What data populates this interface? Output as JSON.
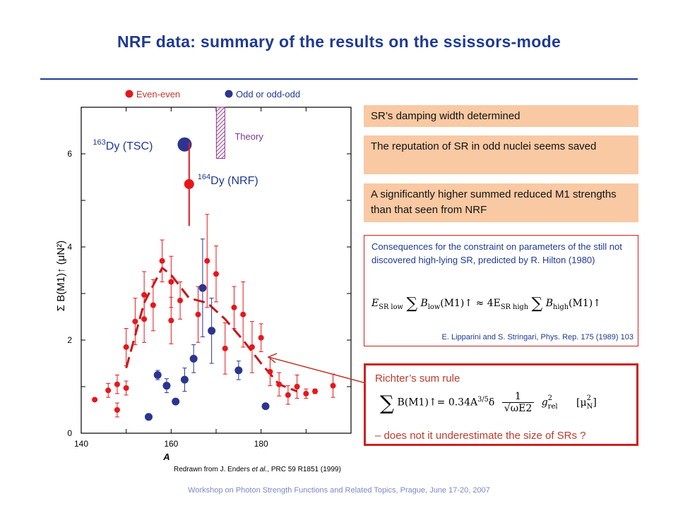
{
  "slide": {
    "title": "NRF data: summary of the results on the ssissors-mode",
    "footer": "Workshop on Photon Strength Functions and Related Topics, Prague, June 17-20, 2007",
    "redrawn_prefix": "Redrawn from J. Enders ",
    "redrawn_italic": "et al.",
    "redrawn_suffix": ", PRC 59 R1851 (1999)",
    "boxes": [
      "SR’s damping width determined",
      "The reputation of SR in odd nuclei seems saved",
      "A significantly higher summed reduced M1 strengths than that seen from NRF"
    ],
    "consequences": {
      "text": "Consequences  for the constraint on parameters  of  the still not discovered high-lying SR, predicted by R. Hilton (1980)",
      "eq_lhs_E": "E",
      "eq_lhs_sub": "SR low",
      "eq_sum1": "∑",
      "eq_B1": "B",
      "eq_B1_sub": "low",
      "eq_mid": "(M1)↑ ≈ 4E",
      "eq_rhs_sub": "SR high",
      "eq_sum2": "∑",
      "eq_B2": "B",
      "eq_B2_sub": "high",
      "eq_end": "(M1)↑",
      "reference": "E. Lipparini and S. Stringari, Phys. Rep. 175 (1989) 103"
    },
    "richter": {
      "title": "Richter’s sum rule",
      "sum": "∑",
      "lhs": "B(M1)↑= 0.34A",
      "exp": "3/5",
      "delta": "δ",
      "frac_num": "1",
      "frac_den": "√ωE2",
      "g": "g",
      "g_sup": "2",
      "g_sub": "rel",
      "unit": "[μ",
      "unit_sub": "N",
      "unit_sup": "2",
      "unit_end": "]",
      "question": "– does not it underestimate the size of SRs ?"
    }
  },
  "chart_data": {
    "type": "scatter",
    "xlabel": "A",
    "ylabel": "Σ B(M1)↑ (μN²)",
    "xlim": [
      140,
      200
    ],
    "ylim": [
      0,
      7
    ],
    "xticks": [
      140,
      160,
      180
    ],
    "yticks": [
      0,
      2,
      4,
      6
    ],
    "legend": [
      {
        "name": "Even-even",
        "color": "#e8161b"
      },
      {
        "name": "Odd or odd-odd",
        "color": "#2b3590"
      }
    ],
    "series": [
      {
        "name": "Even-even",
        "color": "#e8161b",
        "points": [
          {
            "x": 143,
            "y": 0.72,
            "e": 0
          },
          {
            "x": 146,
            "y": 0.92,
            "e": 0.15
          },
          {
            "x": 148,
            "y": 0.5,
            "e": 0.15
          },
          {
            "x": 148,
            "y": 1.05,
            "e": 0.2
          },
          {
            "x": 150,
            "y": 0.97,
            "e": 0.15
          },
          {
            "x": 150,
            "y": 1.85,
            "e": 0.4
          },
          {
            "x": 152,
            "y": 2.4,
            "e": 0.5
          },
          {
            "x": 154,
            "y": 2.45,
            "e": 0.5
          },
          {
            "x": 154,
            "y": 2.97,
            "e": 0.5
          },
          {
            "x": 156,
            "y": 2.75,
            "e": 0.55
          },
          {
            "x": 158,
            "y": 3.7,
            "e": 0.45
          },
          {
            "x": 160,
            "y": 3.25,
            "e": 0.55
          },
          {
            "x": 160,
            "y": 2.42,
            "e": 0.5
          },
          {
            "x": 162,
            "y": 2.85,
            "e": 0.4
          },
          {
            "x": 166,
            "y": 2.55,
            "e": 0.6
          },
          {
            "x": 168,
            "y": 3.7,
            "e": 1.0
          },
          {
            "x": 170,
            "y": 3.42,
            "e": 0.6
          },
          {
            "x": 172,
            "y": 1.82,
            "e": 0.55
          },
          {
            "x": 174,
            "y": 2.7,
            "e": 0.45
          },
          {
            "x": 176,
            "y": 2.55,
            "e": 0.7
          },
          {
            "x": 178,
            "y": 1.85,
            "e": 0.55
          },
          {
            "x": 180,
            "y": 2.05,
            "e": 0.3
          },
          {
            "x": 182,
            "y": 1.32,
            "e": 0.3
          },
          {
            "x": 184,
            "y": 1.05,
            "e": 0.25
          },
          {
            "x": 186,
            "y": 0.82,
            "e": 0.2
          },
          {
            "x": 188,
            "y": 1.0,
            "e": 0.25
          },
          {
            "x": 190,
            "y": 0.85,
            "e": 0.1
          },
          {
            "x": 192,
            "y": 0.9,
            "e": 0.05
          },
          {
            "x": 196,
            "y": 1.02,
            "e": 0.25
          }
        ]
      },
      {
        "name": "Odd or odd-odd",
        "color": "#2b3590",
        "points": [
          {
            "x": 155,
            "y": 0.35,
            "e": 0
          },
          {
            "x": 157,
            "y": 1.25,
            "e": 0.1
          },
          {
            "x": 159,
            "y": 1.02,
            "e": 0.15
          },
          {
            "x": 161,
            "y": 0.68,
            "e": 0
          },
          {
            "x": 163,
            "y": 1.15,
            "e": 0.25
          },
          {
            "x": 165,
            "y": 1.6,
            "e": 0.3
          },
          {
            "x": 167,
            "y": 3.12,
            "e": 1.05
          },
          {
            "x": 169,
            "y": 2.2,
            "e": 0.7
          },
          {
            "x": 175,
            "y": 1.35,
            "e": 0.2
          },
          {
            "x": 181,
            "y": 0.58,
            "e": 0
          }
        ]
      }
    ],
    "tsc": {
      "label_sup": "163",
      "label": "Dy (TSC)",
      "x": 163,
      "y": 6.2,
      "color": "#2b3590"
    },
    "nrf": {
      "label_sup": "164",
      "label": "Dy (NRF)",
      "x": 164,
      "y": 5.35,
      "e": 0.9,
      "color": "#e8161b"
    },
    "theory": {
      "label": "Theory",
      "x": 171,
      "y_low": 5.9,
      "y_high": 7.0
    },
    "trend": {
      "x": [
        150,
        154,
        158,
        160,
        164,
        168,
        172,
        176,
        180,
        184,
        188
      ],
      "y": [
        1.4,
        2.8,
        3.55,
        3.4,
        2.9,
        2.8,
        2.45,
        2.0,
        1.5,
        1.05,
        0.9
      ]
    }
  }
}
